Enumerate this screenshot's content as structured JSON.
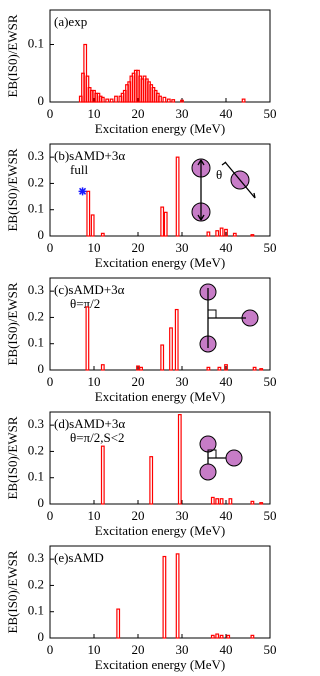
{
  "chart_data": [
    {
      "type": "bar",
      "label": "(a)exp",
      "xlabel": "Excitation energy (MeV)",
      "ylabel": "EB(IS0)/EWSR",
      "color": "#ff0000",
      "x": [
        7,
        7.5,
        8,
        8.5,
        9,
        9.5,
        10,
        10.5,
        11,
        11.5,
        12,
        13,
        14,
        15,
        16,
        16.5,
        17,
        17.5,
        18,
        18.5,
        19,
        19.5,
        20,
        20.5,
        21,
        21.5,
        22,
        22.5,
        23,
        23.5,
        24,
        24.5,
        25,
        26,
        27,
        28,
        30,
        44
      ],
      "values": [
        0.01,
        0.05,
        0.1,
        0.045,
        0.025,
        0.02,
        0.02,
        0.015,
        0.015,
        0.01,
        0.008,
        0.005,
        0.005,
        0.01,
        0.01,
        0.015,
        0.02,
        0.03,
        0.035,
        0.045,
        0.05,
        0.055,
        0.055,
        0.045,
        0.04,
        0.045,
        0.04,
        0.035,
        0.03,
        0.025,
        0.02,
        0.015,
        0.01,
        0.008,
        0.005,
        0.004,
        0.003,
        0.005
      ],
      "xlim": [
        0,
        50
      ],
      "xticks": [
        0,
        10,
        20,
        30,
        40,
        50
      ],
      "ylim": [
        0,
        0.16
      ],
      "yticks": [
        0,
        0.1
      ]
    },
    {
      "type": "bar",
      "label": "(b)sAMD+3α",
      "sublabel": "full",
      "annotation": "θ",
      "xlabel": "Excitation energy (MeV)",
      "ylabel": "EB(IS0)/EWSR",
      "color": "#ff0000",
      "x": [
        8.7,
        9.7,
        12,
        25.5,
        26.3,
        29,
        36,
        38,
        39,
        40,
        42,
        46
      ],
      "values": [
        0.17,
        0.08,
        0.01,
        0.11,
        0.09,
        0.3,
        0.015,
        0.02,
        0.03,
        0.025,
        0.01,
        0.005
      ],
      "point": {
        "x": 7.4,
        "y": 0.17,
        "color": "#1a1aff"
      },
      "xlim": [
        0,
        50
      ],
      "xticks": [
        0,
        10,
        20,
        30,
        40,
        50
      ],
      "ylim": [
        0,
        0.35
      ],
      "yticks": [
        0,
        0.1,
        0.2,
        0.3
      ]
    },
    {
      "type": "bar",
      "label": "(c)sAMD+3α",
      "sublabel": "θ=π/2",
      "xlabel": "Excitation energy (MeV)",
      "ylabel": "EB(IS0)/EWSR",
      "color": "#ff0000",
      "x": [
        8.5,
        12,
        20,
        20.7,
        25.5,
        27.5,
        28.8,
        36,
        38.5,
        40,
        46.5,
        48
      ],
      "values": [
        0.24,
        0.02,
        0.015,
        0.01,
        0.095,
        0.16,
        0.23,
        0.01,
        0.01,
        0.02,
        0.01,
        0.005
      ],
      "xlim": [
        0,
        50
      ],
      "xticks": [
        0,
        10,
        20,
        30,
        40,
        50
      ],
      "ylim": [
        0,
        0.35
      ],
      "yticks": [
        0,
        0.1,
        0.2,
        0.3
      ]
    },
    {
      "type": "bar",
      "label": "(d)sAMD+3α",
      "sublabel": "θ=π/2,S<2",
      "xlabel": "Excitation energy (MeV)",
      "ylabel": "EB(IS0)/EWSR",
      "color": "#ff0000",
      "x": [
        12,
        23,
        29.5,
        37,
        38,
        39,
        41,
        46,
        48
      ],
      "values": [
        0.22,
        0.18,
        0.34,
        0.025,
        0.02,
        0.02,
        0.02,
        0.01,
        0.005
      ],
      "xlim": [
        0,
        50
      ],
      "xticks": [
        0,
        10,
        20,
        30,
        40,
        50
      ],
      "ylim": [
        0,
        0.35
      ],
      "yticks": [
        0,
        0.1,
        0.2,
        0.3
      ]
    },
    {
      "type": "bar",
      "label": "(e)sAMD",
      "xlabel": "Excitation energy (MeV)",
      "ylabel": "EB(IS0)/EWSR",
      "color": "#ff0000",
      "x": [
        15.5,
        26,
        29,
        37,
        38,
        39,
        40.5,
        46
      ],
      "values": [
        0.11,
        0.31,
        0.32,
        0.01,
        0.015,
        0.01,
        0.01,
        0.01
      ],
      "xlim": [
        0,
        50
      ],
      "xticks": [
        0,
        10,
        20,
        30,
        40,
        50
      ],
      "ylim": [
        0,
        0.35
      ],
      "yticks": [
        0,
        0.1,
        0.2,
        0.3
      ]
    }
  ]
}
